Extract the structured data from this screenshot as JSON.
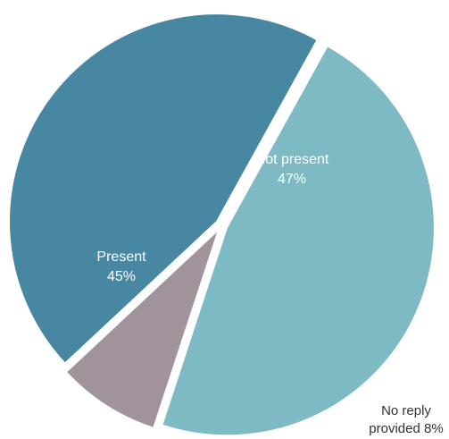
{
  "chart_data": {
    "type": "pie",
    "slices": [
      {
        "label_lines": [
          "Not present",
          "47%"
        ],
        "value": 47,
        "color": "#7DBAC3",
        "label_position": "inside"
      },
      {
        "label_lines": [
          "No reply",
          "provided 8%"
        ],
        "value": 8,
        "color": "#A0939C",
        "label_position": "outside"
      },
      {
        "label_lines": [
          "Present",
          "45%"
        ],
        "value": 45,
        "color": "#4787A1",
        "label_position": "inside"
      }
    ],
    "start_angle_deg": 29,
    "clockwise": true,
    "exploded": true,
    "separator_color": "#ffffff"
  }
}
